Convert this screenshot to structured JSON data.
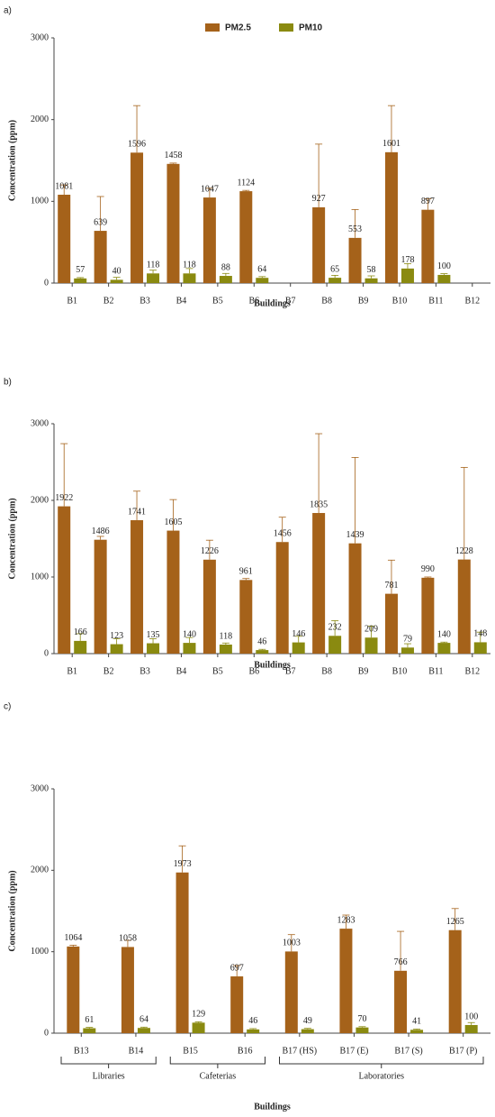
{
  "chart_data": [
    {
      "type": "bar",
      "panel_label": "a)",
      "x_label": "Buildings",
      "y_label": "Concentration (ppm)",
      "ylim": [
        0,
        3000
      ],
      "yticks": [
        0,
        1000,
        2000,
        3000
      ],
      "legend": "top",
      "categories": [
        "B1",
        "B2",
        "B3",
        "B4",
        "B5",
        "B6",
        "B7",
        "B8",
        "B9",
        "B10",
        "B11",
        "B12"
      ],
      "series": [
        {
          "name": "PM2.5",
          "color": "#a5621a",
          "values": [
            1081,
            639,
            1596,
            1458,
            1047,
            1124,
            null,
            927,
            553,
            1601,
            897,
            null
          ],
          "errors": [
            120,
            420,
            575,
            10,
            113,
            10,
            null,
            773,
            347,
            570,
            133,
            null
          ]
        },
        {
          "name": "PM10",
          "color": "#8a8a10",
          "values": [
            57,
            40,
            118,
            118,
            88,
            64,
            null,
            65,
            58,
            178,
            100,
            null
          ],
          "errors": [
            10,
            30,
            40,
            60,
            30,
            15,
            null,
            30,
            30,
            60,
            15,
            null
          ]
        }
      ]
    },
    {
      "type": "bar",
      "panel_label": "b)",
      "x_label": "Buildings",
      "y_label": "Concentration (ppm)",
      "ylim": [
        0,
        3000
      ],
      "yticks": [
        0,
        1000,
        2000,
        3000
      ],
      "categories": [
        "B1",
        "B2",
        "B3",
        "B4",
        "B5",
        "B6",
        "B7",
        "B8",
        "B9",
        "B10",
        "B11",
        "B12"
      ],
      "series": [
        {
          "color": "#a5621a",
          "values": [
            1922,
            1486,
            1741,
            1605,
            1226,
            961,
            1456,
            1835,
            1439,
            781,
            990,
            1228
          ],
          "errors": [
            818,
            44,
            379,
            405,
            254,
            19,
            324,
            1035,
            1121,
            439,
            10,
            1202
          ]
        },
        {
          "color": "#8a8a10",
          "values": [
            166,
            123,
            135,
            140,
            118,
            46,
            146,
            232,
            209,
            79,
            140,
            148
          ],
          "errors": [
            94,
            70,
            60,
            70,
            20,
            10,
            80,
            198,
            151,
            50,
            10,
            132
          ]
        }
      ]
    },
    {
      "type": "bar",
      "panel_label": "c)",
      "x_label": "Buildings",
      "y_label": "Concentration (ppm)",
      "ylim": [
        0,
        3000
      ],
      "yticks": [
        0,
        1000,
        2000,
        3000
      ],
      "categories": [
        "B13",
        "B14",
        "B15",
        "B16",
        "B17 (HS)",
        "B17 (E)",
        "B17 (S)",
        "B17 (P)"
      ],
      "groups": [
        {
          "label": "Libraries",
          "size": 2
        },
        {
          "label": "Cafeterias",
          "size": 2
        },
        {
          "label": "Laboratories",
          "size": 4
        }
      ],
      "series": [
        {
          "color": "#a5621a",
          "values": [
            1064,
            1058,
            1973,
            697,
            1003,
            1283,
            766,
            1265
          ],
          "errors": [
            16,
            82,
            327,
            133,
            207,
            167,
            484,
            265
          ]
        },
        {
          "color": "#8a8a10",
          "values": [
            61,
            64,
            129,
            46,
            49,
            70,
            41,
            100
          ],
          "errors": [
            10,
            10,
            10,
            10,
            10,
            10,
            10,
            30
          ]
        }
      ]
    }
  ]
}
